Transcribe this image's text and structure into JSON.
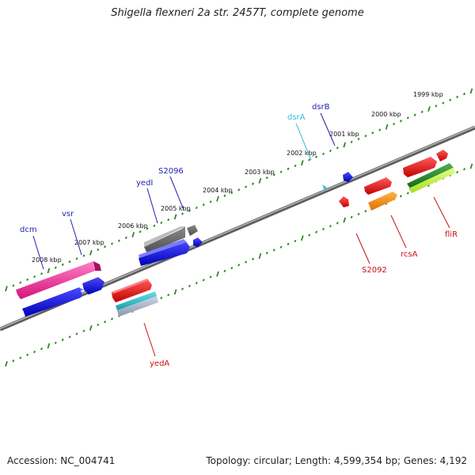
{
  "title": "Shigella flexneri 2a str. 2457T, complete genome",
  "footer": {
    "accession": "Accession: NC_004741",
    "summary": "Topology: circular; Length: 4,599,354 bp; Genes: 4,192"
  },
  "colors": {
    "backbone": "#7a7a7a",
    "ruler": "#2e8b22",
    "label_top": "#1f1fb0",
    "label_cyan": "#33bbdd",
    "label_bottom": "#cc1111"
  },
  "ruler_labels": [
    "1999 kbp",
    "2000 kbp",
    "2001 kbp",
    "2002 kbp",
    "2003 kbp",
    "2004 kbp",
    "2005 kbp",
    "2006 kbp",
    "2007 kbp",
    "2008 kbp"
  ],
  "genes_top": [
    {
      "name": "dcm",
      "color": "label_top"
    },
    {
      "name": "vsr",
      "color": "label_top"
    },
    {
      "name": "yedI",
      "color": "label_top"
    },
    {
      "name": "S2096",
      "color": "label_top"
    },
    {
      "name": "dsrA",
      "color": "label_cyan"
    },
    {
      "name": "dsrB",
      "color": "label_top"
    }
  ],
  "genes_bottom": [
    {
      "name": "yedA"
    },
    {
      "name": "S2092"
    },
    {
      "name": "rcsA"
    },
    {
      "name": "fliR"
    }
  ]
}
